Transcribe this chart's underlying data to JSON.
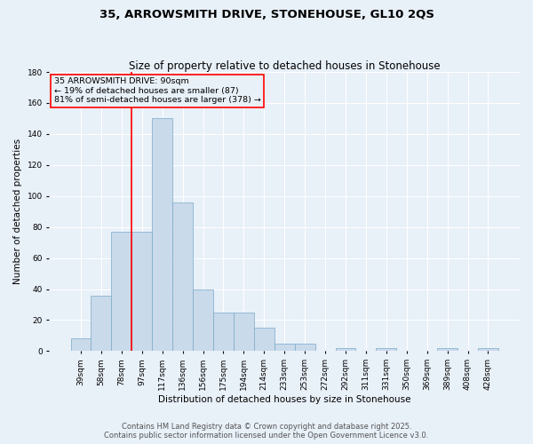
{
  "title_line1": "35, ARROWSMITH DRIVE, STONEHOUSE, GL10 2QS",
  "title_line2": "Size of property relative to detached houses in Stonehouse",
  "xlabel": "Distribution of detached houses by size in Stonehouse",
  "ylabel": "Number of detached properties",
  "bar_color": "#c9daea",
  "bar_edge_color": "#7aaac8",
  "property_line_color": "red",
  "annotation_text": "35 ARROWSMITH DRIVE: 90sqm\n← 19% of detached houses are smaller (87)\n81% of semi-detached houses are larger (378) →",
  "annotation_box_color": "red",
  "ylim": [
    0,
    180
  ],
  "yticks": [
    0,
    20,
    40,
    60,
    80,
    100,
    120,
    140,
    160,
    180
  ],
  "bin_labels": [
    "39sqm",
    "58sqm",
    "78sqm",
    "97sqm",
    "117sqm",
    "136sqm",
    "156sqm",
    "175sqm",
    "194sqm",
    "214sqm",
    "233sqm",
    "253sqm",
    "272sqm",
    "292sqm",
    "311sqm",
    "331sqm",
    "350sqm",
    "369sqm",
    "389sqm",
    "408sqm",
    "428sqm"
  ],
  "bar_values": [
    8,
    36,
    77,
    77,
    150,
    96,
    40,
    25,
    25,
    15,
    5,
    5,
    0,
    2,
    0,
    2,
    0,
    0,
    2,
    0,
    2
  ],
  "property_line_bin_index": 3,
  "footer_line1": "Contains HM Land Registry data © Crown copyright and database right 2025.",
  "footer_line2": "Contains public sector information licensed under the Open Government Licence v3.0.",
  "background_color": "#e8f0f8",
  "grid_color": "white",
  "title_fontsize": 9.5,
  "subtitle_fontsize": 8.5,
  "axis_label_fontsize": 7.5,
  "tick_fontsize": 6.5,
  "annotation_fontsize": 6.8,
  "footer_fontsize": 6.0,
  "bar_width": 1.0
}
